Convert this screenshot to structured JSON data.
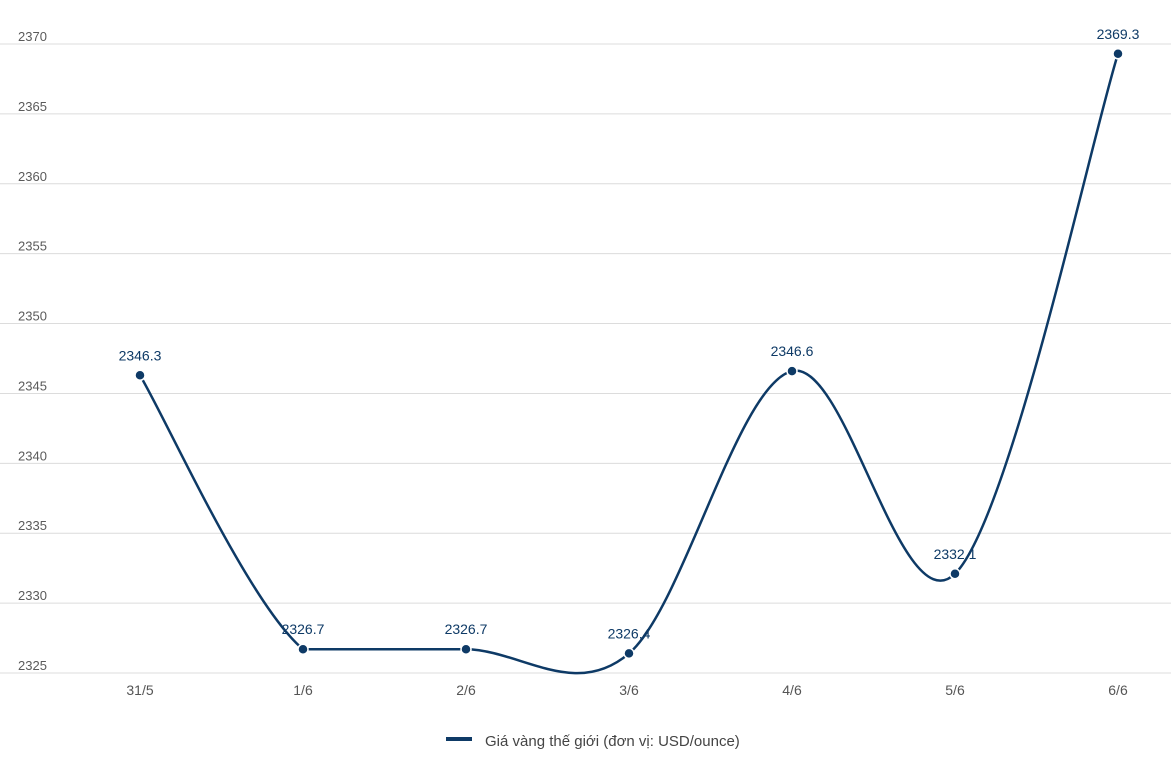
{
  "chart_data": {
    "type": "line",
    "categories": [
      "31/5",
      "1/6",
      "2/6",
      "3/6",
      "4/6",
      "5/6",
      "6/6"
    ],
    "series": [
      {
        "name": "Giá vàng thế giới (đơn vị: USD/ounce)",
        "values": [
          2346.3,
          2326.7,
          2326.7,
          2326.4,
          2346.6,
          2332.1,
          2369.3
        ],
        "data_labels": [
          "2346.3",
          "2326.7",
          "2326.7",
          "2326.4",
          "2346.6",
          "2332.1",
          "2369.3"
        ],
        "color": "#0e3a66"
      }
    ],
    "title": "",
    "xlabel": "",
    "ylabel": "",
    "ylim": [
      2325,
      2370
    ],
    "yticks": [
      "2325",
      "2330",
      "2335",
      "2340",
      "2345",
      "2350",
      "2355",
      "2360",
      "2365",
      "2370"
    ],
    "grid": true,
    "smooth": true,
    "legend_position": "bottom-center",
    "colors": {
      "line": "#0e3a66",
      "grid": "#dcdcdc",
      "tick_text": "#555555"
    }
  }
}
